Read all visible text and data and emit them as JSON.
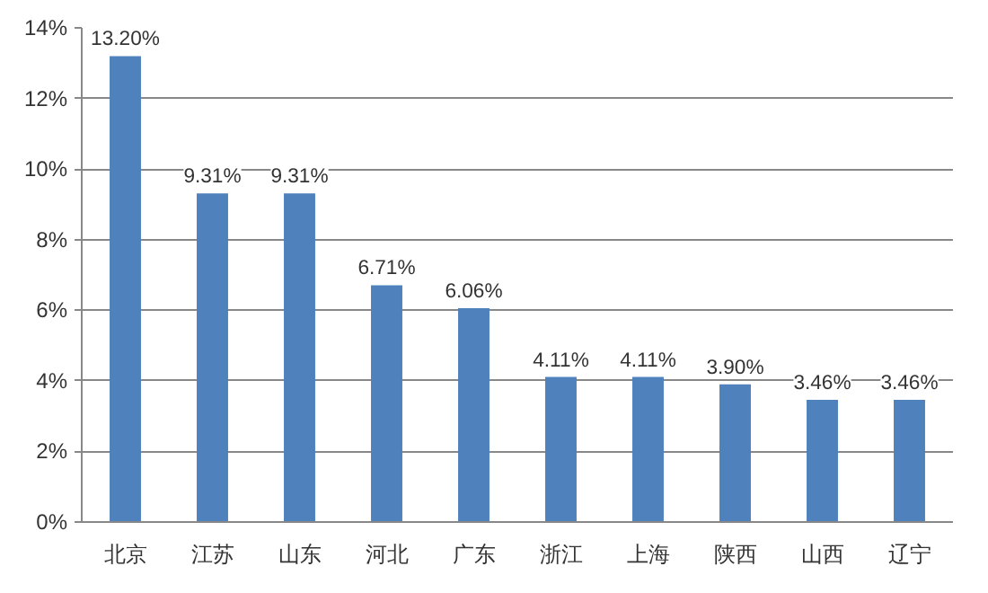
{
  "chart_data": {
    "type": "bar",
    "categories": [
      "北京",
      "江苏",
      "山东",
      "河北",
      "广东",
      "浙江",
      "上海",
      "陕西",
      "山西",
      "辽宁"
    ],
    "values": [
      13.2,
      9.31,
      9.31,
      6.71,
      6.06,
      4.11,
      4.11,
      3.9,
      3.46,
      3.46
    ],
    "value_labels": [
      "13.20%",
      "9.31%",
      "9.31%",
      "6.71%",
      "6.06%",
      "4.11%",
      "4.11%",
      "3.90%",
      "3.46%",
      "3.46%"
    ],
    "color": "#4f81bd",
    "ylim": [
      0,
      14
    ],
    "yticks": [
      {
        "value": 0,
        "label": "0%"
      },
      {
        "value": 2,
        "label": "2%"
      },
      {
        "value": 4,
        "label": "4%"
      },
      {
        "value": 6,
        "label": "6%"
      },
      {
        "value": 8,
        "label": "8%"
      },
      {
        "value": 10,
        "label": "10%"
      },
      {
        "value": 12,
        "label": "12%"
      },
      {
        "value": 14,
        "label": "14%"
      }
    ],
    "grid": "y"
  }
}
